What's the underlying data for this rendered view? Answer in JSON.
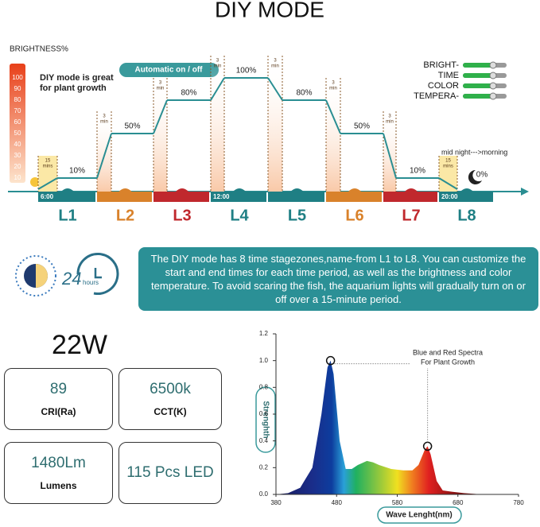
{
  "header": {
    "title": "DIY MODE"
  },
  "schedule": {
    "axis_label": "BRIGHTNESS%",
    "axis_ticks": [
      10,
      20,
      30,
      40,
      50,
      60,
      70,
      80,
      90,
      100
    ],
    "note": [
      "DIY mode is great",
      "for plant growth"
    ],
    "auto_label": "Automatic on / off",
    "legend": [
      "BRIGHT-",
      "TIME",
      "COLOR",
      "TEMPERA-"
    ],
    "stages": [
      "L1",
      "L2",
      "L3",
      "L4",
      "L5",
      "L6",
      "L7",
      "L8"
    ],
    "levels": [
      {
        "value": 10,
        "label": "10%"
      },
      {
        "value": 50,
        "label": "50%"
      },
      {
        "value": 80,
        "label": "80%"
      },
      {
        "value": 100,
        "label": "100%"
      },
      {
        "value": 80,
        "label": "80%"
      },
      {
        "value": 50,
        "label": "50%"
      },
      {
        "value": 10,
        "label": "10%"
      },
      {
        "value": 0,
        "label": "0%"
      }
    ],
    "ramps": [
      [
        "15",
        "mins"
      ],
      [
        "3",
        "min"
      ],
      [
        "3",
        "min"
      ],
      [
        "3",
        "min"
      ],
      [
        "3",
        "min"
      ],
      [
        "3",
        "min"
      ],
      [
        "3",
        "min"
      ],
      [
        "15",
        "mins"
      ]
    ],
    "times": [
      "6:00",
      "12:00",
      "20:00"
    ],
    "night_label": "mid night--->morning"
  },
  "description": "The DIY mode has 8 time stagezones,name-from L1 to L8. You can customize the start and end times for each time period, as well as the brightness and color temperature. To avoid scaring the fish, the aquarium lights will gradually turn on or off over a 15-minute period.",
  "clock": {
    "number": "24",
    "unit": "hours"
  },
  "power": "22W",
  "specs": [
    {
      "value": "89",
      "label": "CRI(Ra)"
    },
    {
      "value": "6500k",
      "label": "CCT(K)"
    },
    {
      "value": "1480Lm",
      "label": "Lumens"
    },
    {
      "value": "115 Pcs LED"
    }
  ],
  "spectrum": {
    "type": "area",
    "ylabel": "Strenghth",
    "xlabel": "Wave Lenght(nm)",
    "annotation": [
      "Blue and Red Spectra",
      "For Plant Growth"
    ],
    "x": [
      380,
      400,
      420,
      440,
      455,
      465,
      470,
      475,
      485,
      495,
      505,
      515,
      530,
      540,
      550,
      570,
      590,
      605,
      615,
      625,
      630,
      635,
      645,
      655,
      670,
      690,
      720,
      780
    ],
    "values": [
      0,
      0.01,
      0.05,
      0.2,
      0.6,
      0.95,
      1.0,
      0.9,
      0.4,
      0.19,
      0.19,
      0.22,
      0.25,
      0.24,
      0.22,
      0.19,
      0.18,
      0.18,
      0.22,
      0.33,
      0.36,
      0.3,
      0.1,
      0.03,
      0.02,
      0.01,
      0,
      0
    ],
    "xlim": [
      380,
      780
    ],
    "ylim": [
      0,
      1.2
    ],
    "xticks": [
      380,
      480,
      580,
      680,
      780
    ],
    "yticks": [
      {
        "value": 0,
        "label": "0.0"
      },
      0.2,
      0.4,
      0.6,
      0.8,
      {
        "value": 1,
        "label": "1.0"
      },
      1.2
    ]
  }
}
